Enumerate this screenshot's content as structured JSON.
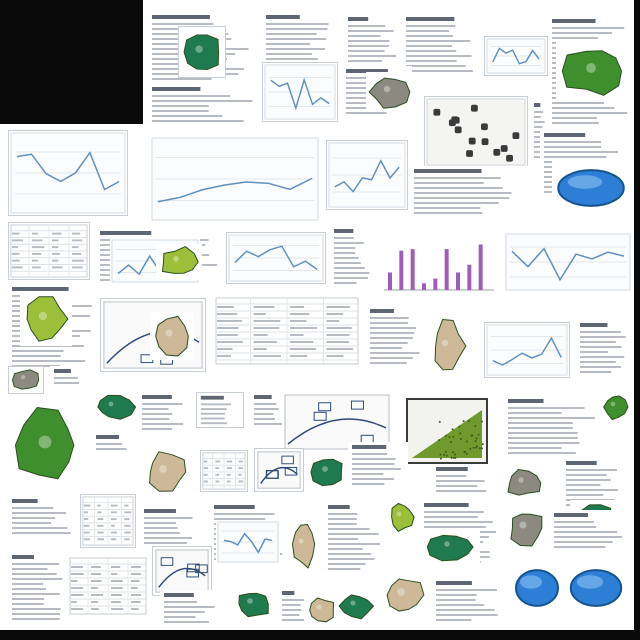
{
  "canvas": {
    "background": "#ffffff",
    "corner_color": "#0a0a0a"
  },
  "palette": {
    "text_gray": "#b7bcc4",
    "text_dark": "#5d6672",
    "navy": "#2d4a7c",
    "chart_blue": "#5f8fc0",
    "leaf_green": "#3f8f2e",
    "moss": "#6e9a2e",
    "lime": "#9cbf3a",
    "teal": "#1f7a4f",
    "blue_oval": "#2c7fd4",
    "purple_bar": "#a25bb8",
    "tan": "#cdb898",
    "stone": "#8c8a80"
  },
  "tiles": [
    {
      "kind": "text"
    },
    {
      "kind": "figure"
    },
    {
      "kind": "line-chart"
    },
    {
      "kind": "scatter"
    },
    {
      "kind": "bar-chart"
    },
    {
      "kind": "photo"
    },
    {
      "kind": "table"
    },
    {
      "kind": "diagram"
    }
  ]
}
